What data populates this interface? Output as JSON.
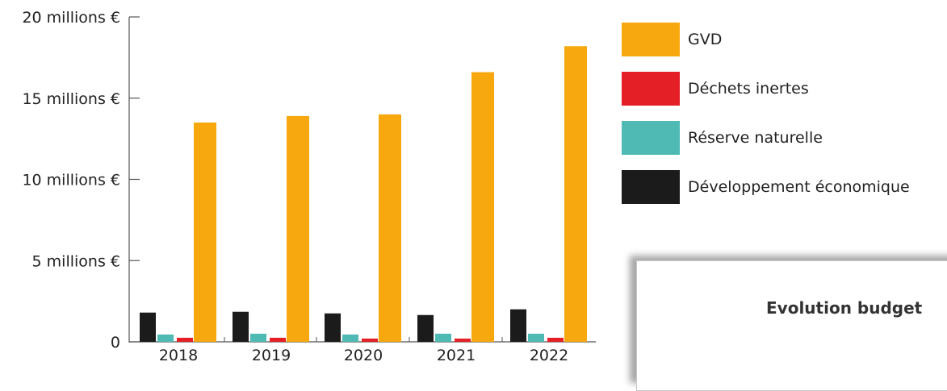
{
  "chart_data": {
    "type": "bar",
    "categories": [
      "2018",
      "2019",
      "2020",
      "2021",
      "2022"
    ],
    "series": [
      {
        "name": "Développement économique",
        "color": "#1b1b1b",
        "values": [
          1.8,
          1.85,
          1.75,
          1.65,
          2.0
        ]
      },
      {
        "name": "Réserve naturelle",
        "color": "#4fbab3",
        "values": [
          0.45,
          0.5,
          0.45,
          0.5,
          0.5
        ]
      },
      {
        "name": "Déchets inertes",
        "color": "#e41f26",
        "values": [
          0.25,
          0.25,
          0.2,
          0.2,
          0.25
        ]
      },
      {
        "name": "GVD",
        "color": "#f6a80e",
        "values": [
          13.5,
          13.9,
          14.0,
          16.6,
          18.2
        ]
      }
    ],
    "y_ticks": [
      {
        "value": 0,
        "label": "0"
      },
      {
        "value": 5,
        "label": "5 millions €"
      },
      {
        "value": 10,
        "label": "10 millions €"
      },
      {
        "value": 15,
        "label": "15 millions €"
      },
      {
        "value": 20,
        "label": "20 millions €"
      }
    ],
    "ylim": [
      0,
      20
    ],
    "legend_order": [
      "GVD",
      "Déchets inertes",
      "Réserve naturelle",
      "Développement économique"
    ],
    "legend_position": "right",
    "grid": false
  },
  "card": {
    "title": "Evolution budget"
  }
}
